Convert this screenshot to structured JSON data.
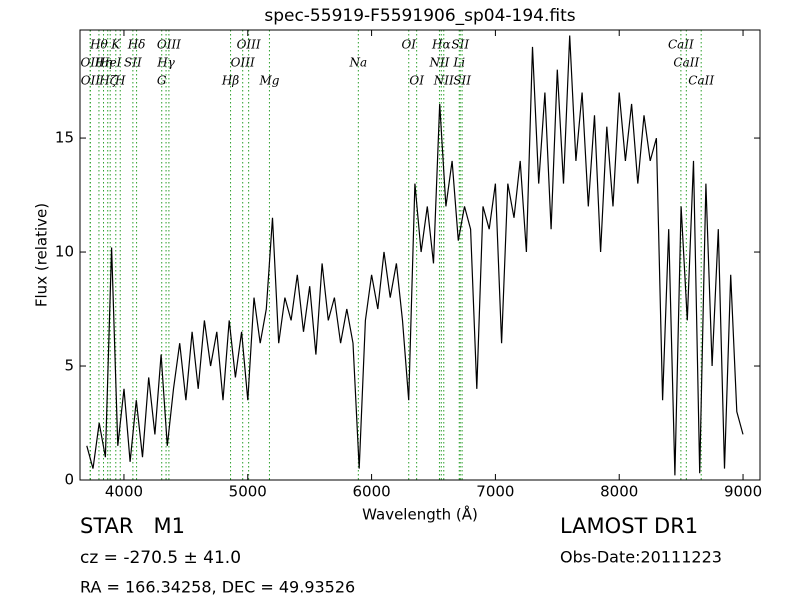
{
  "chart_data": {
    "type": "line",
    "title": "spec-55919-F5591906_sp04-194.fits",
    "x_label": "Wavelength (Å)",
    "y_label": "Flux (relative)",
    "xlim": [
      3645,
      9137
    ],
    "ylim": [
      0,
      19.74
    ],
    "xticks": [
      4000,
      5000,
      6000,
      7000,
      8000,
      9000
    ],
    "yticks": [
      0,
      5,
      10,
      15
    ],
    "color": "#000000",
    "line_color": "#2ca02c",
    "x": [
      3700,
      3750,
      3800,
      3850,
      3900,
      3950,
      4000,
      4050,
      4100,
      4150,
      4200,
      4250,
      4300,
      4350,
      4400,
      4450,
      4500,
      4550,
      4600,
      4650,
      4700,
      4750,
      4800,
      4850,
      4900,
      4950,
      5000,
      5050,
      5100,
      5150,
      5200,
      5250,
      5300,
      5350,
      5400,
      5450,
      5500,
      5550,
      5600,
      5650,
      5700,
      5750,
      5800,
      5850,
      5900,
      5950,
      6000,
      6050,
      6100,
      6150,
      6200,
      6250,
      6300,
      6350,
      6400,
      6450,
      6500,
      6550,
      6600,
      6650,
      6700,
      6750,
      6800,
      6850,
      6900,
      6950,
      7000,
      7050,
      7100,
      7150,
      7200,
      7250,
      7300,
      7350,
      7400,
      7450,
      7500,
      7550,
      7600,
      7650,
      7700,
      7750,
      7800,
      7850,
      7900,
      7950,
      8000,
      8050,
      8100,
      8150,
      8200,
      8250,
      8300,
      8350,
      8400,
      8450,
      8500,
      8550,
      8600,
      8650,
      8700,
      8750,
      8800,
      8850,
      8900,
      8950,
      9000
    ],
    "values": [
      1.5,
      0.5,
      2.5,
      1,
      10.2,
      1.5,
      4,
      0.8,
      3.5,
      1,
      4.5,
      2,
      5.5,
      1.5,
      4,
      6,
      3.5,
      6.5,
      4,
      7,
      5,
      6.5,
      3.5,
      7,
      4.5,
      6.5,
      3.5,
      8,
      6,
      7.5,
      11.5,
      6,
      8,
      7,
      9,
      6.5,
      8.5,
      5.5,
      9.5,
      7,
      8,
      6,
      7.5,
      6,
      0.5,
      7,
      9,
      7.5,
      10,
      8,
      9.5,
      7,
      3.5,
      13,
      10,
      12,
      9.5,
      16.5,
      12,
      14,
      10.5,
      12,
      11,
      4,
      12,
      11,
      13,
      6,
      13,
      11.5,
      14,
      10,
      19,
      13,
      17,
      11,
      18,
      13,
      19.5,
      14,
      17,
      12,
      16,
      10,
      15.5,
      12,
      17,
      14,
      16.5,
      13,
      16,
      14,
      15,
      3.5,
      11,
      0.2,
      12,
      7,
      14,
      0.3,
      13,
      5,
      11,
      0.5,
      9,
      3,
      2
    ],
    "line_ids": [
      [
        {
          "label": "Hθ",
          "x": 3798
        },
        {
          "label": "K",
          "x": 3934
        },
        {
          "label": "Hδ",
          "x": 4102
        },
        {
          "label": "OIII",
          "x": 4363
        },
        {
          "label": "OIII",
          "x": 5007
        },
        {
          "label": "OI",
          "x": 6300
        },
        {
          "label": "Hα",
          "x": 6563
        },
        {
          "label": "SII",
          "x": 6716
        },
        {
          "label": "CaII",
          "x": 8498
        }
      ],
      [
        {
          "label": "OII",
          "x": 3727
        },
        {
          "label": "Hη",
          "x": 3835
        },
        {
          "label": "HeI",
          "x": 3889
        },
        {
          "label": "SII",
          "x": 4072
        },
        {
          "label": "Hγ",
          "x": 4340
        },
        {
          "label": "OIII",
          "x": 4959
        },
        {
          "label": "Na",
          "x": 5893
        },
        {
          "label": "NII",
          "x": 6548
        },
        {
          "label": "Li",
          "x": 6708
        },
        {
          "label": "CaII",
          "x": 8542
        }
      ],
      [
        {
          "label": "OII",
          "x": 3729
        },
        {
          "label": "Hζ",
          "x": 3869
        },
        {
          "label": "H",
          "x": 3970
        },
        {
          "label": "G",
          "x": 4305
        },
        {
          "label": "Hβ",
          "x": 4861
        },
        {
          "label": "Mg",
          "x": 5175
        },
        {
          "label": "OI",
          "x": 6364
        },
        {
          "label": "NII",
          "x": 6583
        },
        {
          "label": "SII",
          "x": 6731
        },
        {
          "label": "CaII",
          "x": 8662
        }
      ]
    ],
    "annotations": {
      "object": "STAR   M1",
      "survey": "LAMOST DR1",
      "redshift": "cz = -270.5 ± 41.0",
      "date": "Obs-Date:20111223",
      "coords": "RA = 166.34258, DEC = 49.93526"
    }
  }
}
